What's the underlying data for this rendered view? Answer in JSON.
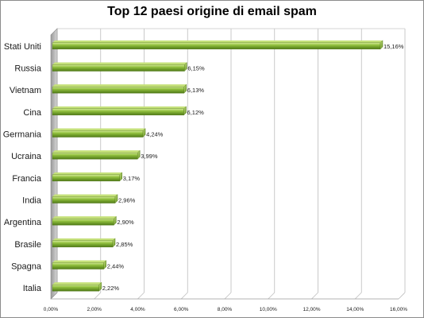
{
  "chart_data": {
    "type": "bar",
    "orientation": "horizontal",
    "title": "Top 12 paesi origine di email spam",
    "categories": [
      "Stati Uniti",
      "Russia",
      "Vietnam",
      "Cina",
      "Germania",
      "Ucraina",
      "Francia",
      "India",
      "Argentina",
      "Brasile",
      "Spagna",
      "Italia"
    ],
    "values": [
      15.16,
      6.15,
      6.13,
      6.12,
      4.24,
      3.99,
      3.17,
      2.96,
      2.9,
      2.85,
      2.44,
      2.22
    ],
    "value_labels": [
      "15,16%",
      "6,15%",
      "6,13%",
      "6,12%",
      "4,24%",
      "3,99%",
      "3,17%",
      "2,96%",
      "2,90%",
      "2,85%",
      "2,44%",
      "2,22%"
    ],
    "xlim": [
      0,
      16
    ],
    "x_ticks": [
      0,
      2,
      4,
      6,
      8,
      10,
      12,
      14,
      16
    ],
    "x_tick_labels": [
      "0,00%",
      "2,00%",
      "4,00%",
      "6,00%",
      "8,00%",
      "10,00%",
      "12,00%",
      "14,00%",
      "16,00%"
    ],
    "grid": true,
    "legend": "none",
    "bar_color": "#7fab2f"
  }
}
